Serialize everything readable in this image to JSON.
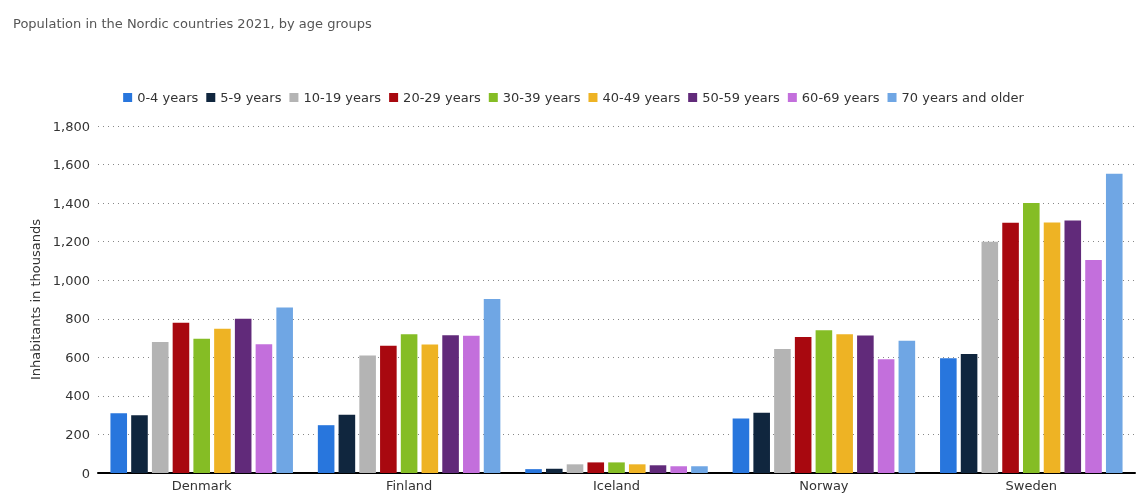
{
  "chart_data": {
    "type": "bar",
    "title": "Population in the Nordic countries 2021, by age groups",
    "ylabel": "Inhabitants in thousands",
    "categories": [
      "Denmark",
      "Finland",
      "Iceland",
      "Norway",
      "Sweden"
    ],
    "series": [
      {
        "name": "0-4 years",
        "color": "#2876dd",
        "values": [
          310,
          248,
          20,
          283,
          595
        ]
      },
      {
        "name": "5-9 years",
        "color": "#10263e",
        "values": [
          300,
          302,
          22,
          313,
          617
        ]
      },
      {
        "name": "10-19 years",
        "color": "#b4b4b4",
        "values": [
          680,
          610,
          45,
          643,
          1200
        ]
      },
      {
        "name": "20-29 years",
        "color": "#a8080f",
        "values": [
          780,
          660,
          55,
          705,
          1298
        ]
      },
      {
        "name": "30-39 years",
        "color": "#85bd25",
        "values": [
          697,
          720,
          55,
          740,
          1400
        ]
      },
      {
        "name": "40-49 years",
        "color": "#eeb324",
        "values": [
          748,
          666,
          45,
          720,
          1300
        ]
      },
      {
        "name": "50-59 years",
        "color": "#612a7a",
        "values": [
          800,
          715,
          40,
          713,
          1310
        ]
      },
      {
        "name": "60-69 years",
        "color": "#c36fdc",
        "values": [
          668,
          712,
          35,
          590,
          1105
        ]
      },
      {
        "name": "70 years and older",
        "color": "#6fa6e4",
        "values": [
          858,
          902,
          35,
          686,
          1552
        ]
      }
    ],
    "ylim": [
      0,
      1800
    ],
    "yticks": [
      0,
      200,
      400,
      600,
      800,
      {
        "value": 1000,
        "label": "1,000"
      },
      {
        "value": 1200,
        "label": "1,200"
      },
      {
        "value": 1400,
        "label": "1,400"
      },
      {
        "value": 1600,
        "label": "1,600"
      },
      {
        "value": 1800,
        "label": "1,800"
      }
    ],
    "grid": "y",
    "legend": "top"
  }
}
